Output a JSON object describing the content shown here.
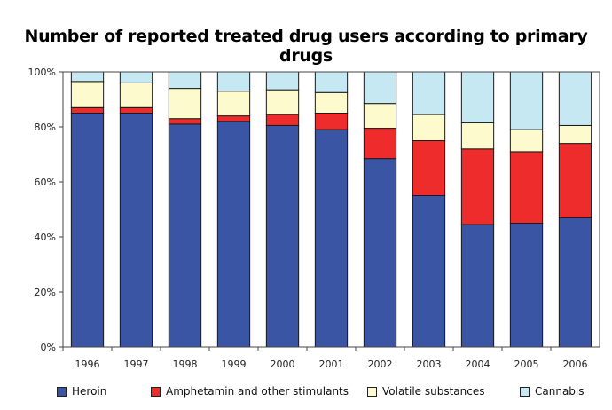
{
  "chart_data": {
    "type": "bar",
    "stacked": true,
    "title": "Number of reported treated drug users according to primary drugs",
    "xlabel": "",
    "ylabel": "",
    "ylim": [
      0,
      100
    ],
    "yticks": [
      "0%",
      "20%",
      "40%",
      "60%",
      "80%",
      "100%"
    ],
    "grid": false,
    "legend_position": "bottom",
    "categories": [
      "1996",
      "1997",
      "1998",
      "1999",
      "2000",
      "2001",
      "2002",
      "2003",
      "2004",
      "2005",
      "2006"
    ],
    "series": [
      {
        "name": "Heroin",
        "color": "#3b55a5",
        "values": [
          85,
          85,
          81,
          82,
          80.5,
          79,
          68.5,
          55,
          44.5,
          45,
          47
        ]
      },
      {
        "name": "Amphetamin and other stimulants",
        "color": "#ee2c2c",
        "values": [
          2,
          2,
          2,
          2,
          4,
          6,
          11,
          20,
          27.5,
          26,
          27
        ]
      },
      {
        "name": "Volatile substances",
        "color": "#fdfbcd",
        "values": [
          9.5,
          9,
          11,
          9,
          9,
          7.5,
          9,
          9.5,
          9.5,
          8,
          6.5
        ]
      },
      {
        "name": "Cannabis",
        "color": "#c6e8f3",
        "values": [
          3.5,
          4,
          6,
          7,
          6.5,
          7.5,
          11.5,
          15.5,
          18.5,
          21,
          19.5
        ]
      }
    ]
  }
}
